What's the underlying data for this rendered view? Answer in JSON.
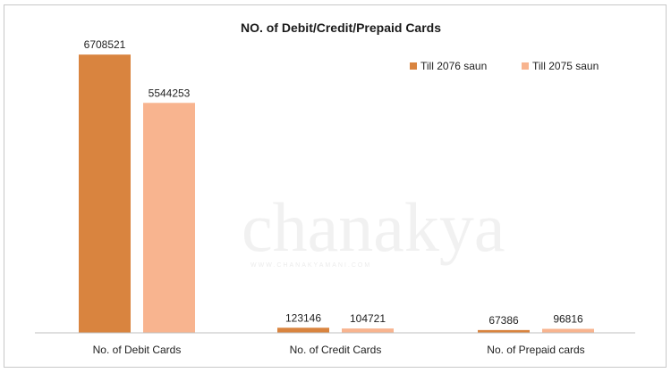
{
  "chart_data": {
    "type": "bar",
    "title": "NO. of Debit/Credit/Prepaid Cards",
    "xlabel": "",
    "ylabel": "",
    "categories": [
      "No. of Debit Cards",
      "No. of Credit Cards",
      "No. of Prepaid cards"
    ],
    "series": [
      {
        "name": "Till 2076 saun",
        "color": "#d9843f",
        "values": [
          6708521,
          123146,
          67386
        ]
      },
      {
        "name": "Till 2075 saun",
        "color": "#f8b48f",
        "values": [
          5544253,
          104721,
          96816
        ]
      }
    ],
    "ylim": [
      0,
      7250000
    ],
    "grid": false,
    "legend_position": "top-right"
  },
  "watermark": {
    "text": "chanakya",
    "subtext": "WWW.CHANAKYAMANI.COM"
  }
}
